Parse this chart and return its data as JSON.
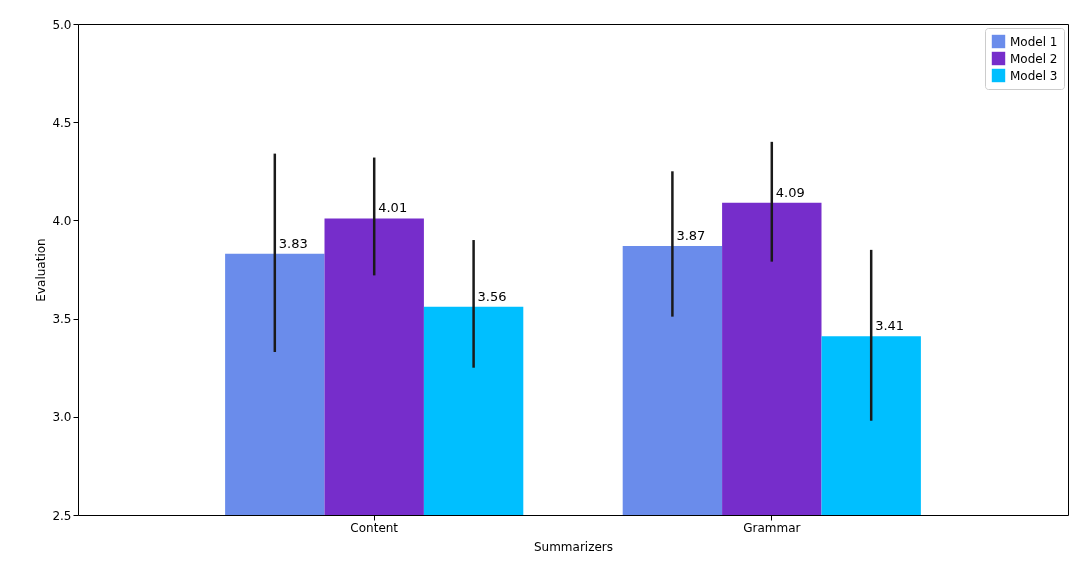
{
  "chart_data": {
    "type": "bar",
    "xlabel": "Summarizers",
    "ylabel": "Evaluation",
    "categories": [
      "Content",
      "Grammar"
    ],
    "series": [
      {
        "name": "Model 1",
        "color": "#6a8ceb",
        "values": [
          3.83,
          3.87
        ],
        "errors": [
          [
            3.33,
            4.34
          ],
          [
            3.51,
            4.25
          ]
        ]
      },
      {
        "name": "Model 2",
        "color": "#762dcb",
        "values": [
          4.01,
          4.09
        ],
        "errors": [
          [
            3.72,
            4.32
          ],
          [
            3.79,
            4.4
          ]
        ]
      },
      {
        "name": "Model 3",
        "color": "#00bfff",
        "values": [
          3.56,
          3.41
        ],
        "errors": [
          [
            3.25,
            3.9
          ],
          [
            2.98,
            3.85
          ]
        ]
      }
    ],
    "ylim": [
      2.5,
      5.0
    ],
    "yticks": [
      2.5,
      {
        "value": 3,
        "label": "3.0"
      },
      3.5,
      {
        "value": 4,
        "label": "4.0"
      },
      4.5,
      {
        "value": 5,
        "label": "5.0"
      }
    ],
    "data_labels": true,
    "legend": "top right",
    "grid": false
  }
}
